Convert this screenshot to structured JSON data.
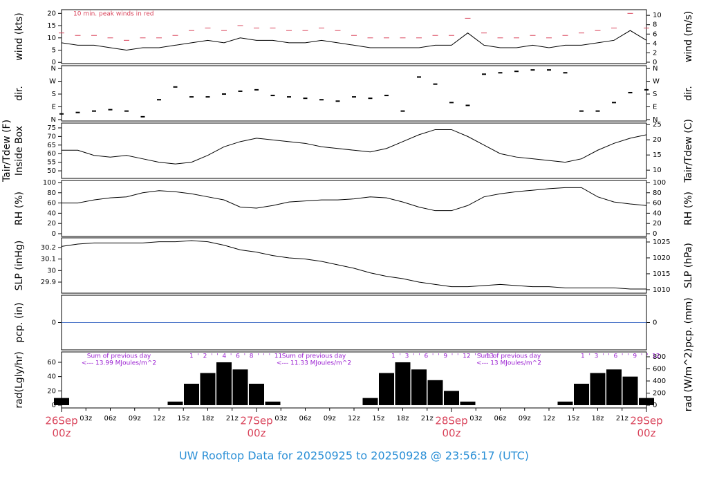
{
  "chart_data": {
    "title": "UW Rooftop Data for 20250925  to  20250928 @ 23:56:17  (UTC)",
    "x": [
      0,
      2,
      4,
      6,
      8,
      10,
      12,
      14,
      16,
      18,
      20,
      22,
      24,
      26,
      28,
      30,
      32,
      34,
      36,
      38,
      40,
      42,
      44,
      46,
      48,
      50,
      52,
      54,
      56,
      58,
      60,
      62,
      64,
      66,
      68,
      70,
      72
    ],
    "xlim": [
      0,
      72
    ],
    "xticks": [
      {
        "value": 3,
        "label": "03z"
      },
      {
        "value": 6,
        "label": "06z"
      },
      {
        "value": 9,
        "label": "09z"
      },
      {
        "value": 12,
        "label": "12z"
      },
      {
        "value": 15,
        "label": "15z"
      },
      {
        "value": 18,
        "label": "18z"
      },
      {
        "value": 21,
        "label": "21z"
      },
      {
        "value": 27,
        "label": "03z"
      },
      {
        "value": 30,
        "label": "06z"
      },
      {
        "value": 33,
        "label": "09z"
      },
      {
        "value": 36,
        "label": "12z"
      },
      {
        "value": 39,
        "label": "15z"
      },
      {
        "value": 42,
        "label": "18z"
      },
      {
        "value": 45,
        "label": "21z"
      },
      {
        "value": 51,
        "label": "03z"
      },
      {
        "value": 54,
        "label": "06z"
      },
      {
        "value": 57,
        "label": "09z"
      },
      {
        "value": 60,
        "label": "12z"
      },
      {
        "value": 63,
        "label": "15z"
      },
      {
        "value": 66,
        "label": "18z"
      },
      {
        "value": 69,
        "label": "21z"
      }
    ],
    "date_ticks": [
      {
        "value": 0,
        "label": "26Sep",
        "sub": "00z"
      },
      {
        "value": 24,
        "label": "27Sep",
        "sub": "00z"
      },
      {
        "value": 48,
        "label": "28Sep",
        "sub": "00z"
      },
      {
        "value": 72,
        "label": "29Sep",
        "sub": "00z"
      }
    ],
    "panels": [
      {
        "type": "line",
        "ylabel": [
          "wind (kts)"
        ],
        "y2label": "wind (m/s)",
        "note": "10 min. peak winds in red",
        "ylim": [
          -0.5,
          21.5
        ],
        "yticks": [
          0,
          5,
          10,
          15,
          20
        ],
        "y2lim": [
          -0.3,
          11.2
        ],
        "y2ticks": [
          0,
          2,
          4,
          6,
          8,
          10
        ],
        "series": [
          {
            "style": "line",
            "color": "#000000",
            "values": [
              8,
              7,
              7,
              6,
              5,
              6,
              6,
              7,
              8,
              9,
              8,
              10,
              9,
              9,
              8,
              8,
              9,
              8,
              7,
              6,
              6,
              6,
              6,
              7,
              7,
              12,
              7,
              6,
              6,
              7,
              6,
              7,
              7,
              8,
              9,
              13,
              9
            ]
          },
          {
            "style": "dash",
            "color": "#d9435a",
            "values": [
              12,
              11,
              11,
              10,
              9,
              10,
              10,
              11,
              13,
              14,
              13,
              15,
              14,
              14,
              13,
              13,
              14,
              13,
              11,
              10,
              10,
              10,
              10,
              11,
              11,
              18,
              12,
              10,
              10,
              11,
              10,
              11,
              12,
              13,
              14,
              20,
              14
            ]
          }
        ]
      },
      {
        "type": "scatter",
        "ylabel": [
          "dir."
        ],
        "y2label": "dir.",
        "ylim": [
          -10,
          380
        ],
        "yticks": [
          {
            "value": 0,
            "label": "N"
          },
          {
            "value": 90,
            "label": "E"
          },
          {
            "value": 180,
            "label": "S"
          },
          {
            "value": 270,
            "label": "W"
          },
          {
            "value": 360,
            "label": "N"
          }
        ],
        "y2lim": [
          -10,
          380
        ],
        "y2ticks": [
          {
            "value": 0,
            "label": "N"
          },
          {
            "value": 90,
            "label": "E"
          },
          {
            "value": 180,
            "label": "S"
          },
          {
            "value": 270,
            "label": "W"
          },
          {
            "value": 360,
            "label": "N"
          }
        ],
        "series": [
          {
            "style": "dot",
            "color": "#000000",
            "values": [
              40,
              50,
              60,
              70,
              60,
              20,
              140,
              230,
              160,
              160,
              180,
              200,
              210,
              170,
              160,
              150,
              140,
              130,
              160,
              150,
              170,
              60,
              300,
              250,
              120,
              100,
              320,
              330,
              340,
              350,
              350,
              330,
              60,
              60,
              120,
              190,
              210
            ]
          }
        ]
      },
      {
        "type": "line",
        "ylabel": [
          "Tair/Tdew (F)",
          "Inside Box"
        ],
        "y2label": "Tair/Tdew (C)",
        "ylim": [
          45.6,
          77.8
        ],
        "yticks": [
          50,
          55,
          60,
          65,
          70,
          75
        ],
        "y2lim": [
          7.3,
          25.5
        ],
        "y2ticks": [
          10,
          15,
          20,
          25
        ],
        "series": [
          {
            "style": "line",
            "color": "#000000",
            "values": [
              62,
              62,
              59,
              58,
              59,
              57,
              55,
              54,
              55,
              59,
              64,
              67,
              69,
              68,
              67,
              66,
              64,
              63,
              62,
              61,
              63,
              67,
              71,
              74,
              74,
              70,
              65,
              60,
              58,
              57,
              56,
              55,
              57,
              62,
              66,
              69,
              71
            ]
          }
        ]
      },
      {
        "type": "line",
        "ylabel": [
          "RH (%)"
        ],
        "y2label": "RH (%)",
        "ylim": [
          -5.4,
          104
        ],
        "yticks": [
          0,
          20,
          40,
          60,
          80,
          100
        ],
        "y2lim": [
          -5.4,
          104
        ],
        "y2ticks": [
          0,
          20,
          40,
          60,
          80,
          100
        ],
        "series": [
          {
            "style": "line",
            "color": "#000000",
            "values": [
              60,
              60,
              66,
              70,
              72,
              80,
              84,
              82,
              78,
              72,
              66,
              52,
              50,
              55,
              62,
              64,
              66,
              66,
              68,
              72,
              70,
              62,
              52,
              45,
              45,
              55,
              72,
              78,
              82,
              85,
              88,
              90,
              90,
              72,
              62,
              58,
              55
            ]
          }
        ]
      },
      {
        "type": "line",
        "ylabel": [
          "SLP (inHg)"
        ],
        "y2label": "SLP (hPa)",
        "ylim": [
          29.804,
          30.284
        ],
        "yticks": [
          29.9,
          30,
          30.1,
          30.2
        ],
        "y2lim": [
          1008.9,
          1026.3
        ],
        "y2ticks": [
          1010,
          1015,
          1020,
          1025
        ],
        "series": [
          {
            "style": "line",
            "color": "#000000",
            "values": [
              30.21,
              30.23,
              30.24,
              30.24,
              30.24,
              30.24,
              30.25,
              30.25,
              30.26,
              30.25,
              30.22,
              30.18,
              30.16,
              30.13,
              30.11,
              30.1,
              30.08,
              30.05,
              30.02,
              29.98,
              29.95,
              29.93,
              29.9,
              29.88,
              29.86,
              29.86,
              29.87,
              29.88,
              29.87,
              29.86,
              29.86,
              29.85,
              29.85,
              29.85,
              29.85,
              29.84,
              29.84
            ]
          }
        ]
      },
      {
        "type": "line",
        "ylabel": [
          "pcp. (in)"
        ],
        "y2label": "pcp. (mm)",
        "ylim": [
          -1,
          1
        ],
        "yticks": [
          0
        ],
        "y2lim": [
          -1,
          1
        ],
        "y2ticks": [
          0
        ],
        "series": [
          {
            "style": "line",
            "color": "#4a74c8",
            "values": [
              0,
              0,
              0,
              0,
              0,
              0,
              0,
              0,
              0,
              0,
              0,
              0,
              0,
              0,
              0,
              0,
              0,
              0,
              0,
              0,
              0,
              0,
              0,
              0,
              0,
              0,
              0,
              0,
              0,
              0,
              0,
              0,
              0,
              0,
              0,
              0,
              0
            ]
          }
        ]
      },
      {
        "type": "bar",
        "ylabel": [
          "rad(Lgly/hr)"
        ],
        "y2label": "rad (W/m^2)",
        "ylim": [
          -3.9,
          74.5
        ],
        "yticks": [
          0,
          20,
          40,
          60
        ],
        "y2lim": [
          -45.7,
          880
        ],
        "y2ticks": [
          0,
          200,
          400,
          600,
          800
        ],
        "daily_sums": [
          [
            "Sum of previous day",
            "<--- 13.99 MJoules/m^2"
          ],
          [
            "Sum of previous day",
            "<--- 11.33 MJoules/m^2"
          ],
          [
            "Sum of previous day",
            "<--- 13 MJoules/m^2"
          ]
        ],
        "hour_marks": [
          "1  '  2  '  '  4  '  6  '  8  '  '  '  11",
          "1  '  3  '  '  6  '  '  9  '  '  12  '  '  13",
          "1  '  3  '  '  6  '  '  9  '  '  12"
        ],
        "series": [
          {
            "style": "bar",
            "color": "#000000",
            "values": [
              10,
              0,
              0,
              0,
              0,
              0,
              0,
              5,
              30,
              45,
              60,
              50,
              30,
              5,
              0,
              0,
              0,
              0,
              0,
              10,
              45,
              60,
              50,
              35,
              20,
              5,
              0,
              0,
              0,
              0,
              0,
              5,
              30,
              45,
              50,
              40,
              10
            ]
          }
        ]
      }
    ]
  }
}
